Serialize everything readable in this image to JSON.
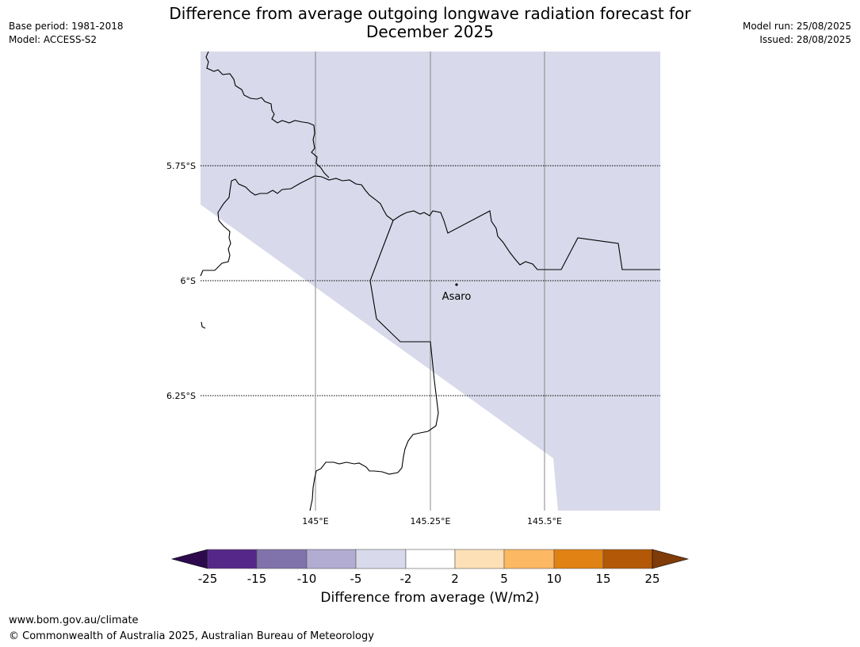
{
  "title_line1": "Difference from average outgoing longwave radiation forecast for",
  "title_line2": "December 2025",
  "meta_left": {
    "base_period": "Base period: 1981-2018",
    "model": "Model: ACCESS-S2"
  },
  "meta_right": {
    "model_run": "Model run: 25/08/2025",
    "issued": "Issued: 28/08/2025"
  },
  "map": {
    "lat_labels": [
      "5.75°S",
      "6°S",
      "6.25°S"
    ],
    "lon_labels": [
      "145°E",
      "145.25°E",
      "145.5°E"
    ],
    "place_label": "Asaro",
    "fill_category": "-5 to -2",
    "fill_color": "#d8d9ea",
    "border_color": "#000000",
    "gridline_color": "#888888"
  },
  "colorbar": {
    "title": "Difference from average (W/m2)",
    "tick_labels": [
      "-25",
      "-15",
      "-10",
      "-5",
      "-2",
      "2",
      "5",
      "10",
      "15",
      "25"
    ],
    "under_color": "#2d0a4e",
    "over_color": "#7f3b08",
    "colors": [
      "#542788",
      "#8073ac",
      "#b2abd2",
      "#d8daeb",
      "#ffffff",
      "#fee0b6",
      "#fdb863",
      "#e08214",
      "#b35806"
    ]
  },
  "footer": {
    "url": "www.bom.gov.au/climate",
    "copyright": "© Commonwealth of Australia 2025, Australian Bureau of Meteorology"
  }
}
